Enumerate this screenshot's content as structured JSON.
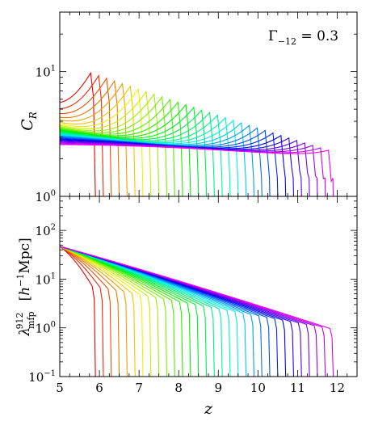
{
  "chart_data": [
    {
      "type": "line",
      "ylabel_main": "C",
      "ylabel_sub": "R",
      "annotation_main": "Γ",
      "annotation_sub": "−12",
      "annotation_rest": " = 0.3",
      "yscale": "log",
      "ylim": [
        1,
        30
      ],
      "yticks": [
        {
          "v": 1,
          "b": "10",
          "e": "0"
        },
        {
          "v": 10,
          "b": "10",
          "e": "1"
        }
      ],
      "curve_params": {
        "z_reion_start": 5.9,
        "z_reion_step": 0.2,
        "n_curves": 31,
        "z_min": 5.0,
        "base_at_z5": 2.55,
        "base_at_z12": 2.05,
        "peak_first": 11.3,
        "peak_last": 2.4,
        "initial_first": 3.9,
        "initial_last": 2.6,
        "low_value": 1.0
      }
    },
    {
      "type": "line",
      "ylabel_main": "λ",
      "ylabel_sub": "mfp",
      "ylabel_sup": "912",
      "ylabel_unit": "[h⁻¹Mpc]",
      "unit_base": "h",
      "unit_exp": "−1",
      "unit_rest": "Mpc",
      "xlabel": "z",
      "yscale": "log",
      "xlim": [
        5,
        12.5
      ],
      "ylim": [
        0.1,
        500
      ],
      "xticks": [
        5,
        6,
        7,
        8,
        9,
        10,
        11,
        12
      ],
      "yticks": [
        {
          "v": 0.1,
          "b": "10",
          "e": "−1"
        },
        {
          "v": 1,
          "b": "10",
          "e": "0"
        },
        {
          "v": 10,
          "b": "10",
          "e": "1"
        },
        {
          "v": 100,
          "b": "10",
          "e": "2"
        }
      ],
      "curve_params": {
        "z_reion_start": 5.9,
        "z_reion_step": 0.2,
        "n_curves": 31,
        "value_at_z5": 47,
        "value_at_z12": 1.35,
        "drop_first": 5.5,
        "drop_last": 0.9,
        "start_first": 37,
        "start_last": 48,
        "low_value": 0.1
      }
    }
  ]
}
